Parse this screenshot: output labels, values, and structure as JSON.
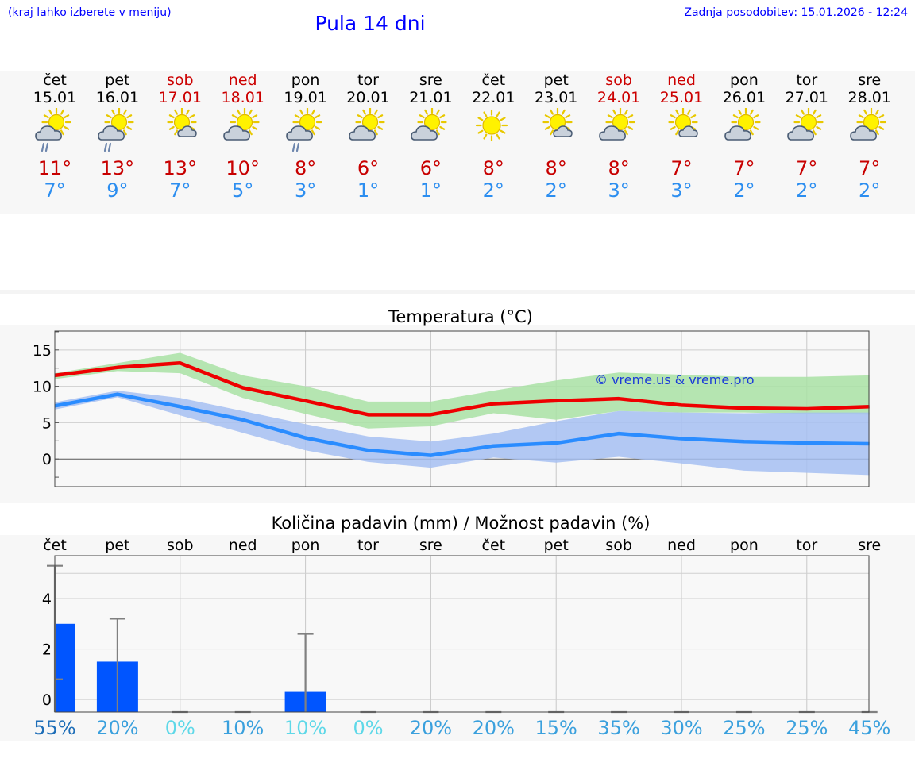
{
  "header": {
    "note": "(kraj lahko izberete v meniju)",
    "title": "Pula 14 dni",
    "update": "Zadnja posodobitev: 15.01.2026 - 12:24"
  },
  "colors": {
    "title_blue": "#0000ff",
    "max_temp": "#c80000",
    "min_temp": "#2c8ef0",
    "weekend": "#cc0000",
    "max_line": "#ee0000",
    "min_line": "#2a8cff",
    "max_band": "#a9e2a4",
    "min_band": "#a6c0f2",
    "bar": "#0055ff"
  },
  "days": [
    {
      "name": "čet",
      "date": "15.01",
      "max": "11°",
      "min": "7°",
      "weekend": false,
      "icon": "sun-cloud-rain-icon"
    },
    {
      "name": "pet",
      "date": "16.01",
      "max": "13°",
      "min": "9°",
      "weekend": false,
      "icon": "sun-cloud-rain-icon"
    },
    {
      "name": "sob",
      "date": "17.01",
      "max": "13°",
      "min": "7°",
      "weekend": true,
      "icon": "sun-small-cloud-icon"
    },
    {
      "name": "ned",
      "date": "18.01",
      "max": "10°",
      "min": "5°",
      "weekend": true,
      "icon": "sun-cloud-icon"
    },
    {
      "name": "pon",
      "date": "19.01",
      "max": "8°",
      "min": "3°",
      "weekend": false,
      "icon": "sun-cloud-rain-icon"
    },
    {
      "name": "tor",
      "date": "20.01",
      "max": "6°",
      "min": "1°",
      "weekend": false,
      "icon": "sun-cloud-icon"
    },
    {
      "name": "sre",
      "date": "21.01",
      "max": "6°",
      "min": "1°",
      "weekend": false,
      "icon": "sun-cloud-icon"
    },
    {
      "name": "čet",
      "date": "22.01",
      "max": "8°",
      "min": "2°",
      "weekend": false,
      "icon": "sun-icon"
    },
    {
      "name": "pet",
      "date": "23.01",
      "max": "8°",
      "min": "2°",
      "weekend": false,
      "icon": "sun-small-cloud-icon"
    },
    {
      "name": "sob",
      "date": "24.01",
      "max": "8°",
      "min": "3°",
      "weekend": true,
      "icon": "sun-cloud-icon"
    },
    {
      "name": "ned",
      "date": "25.01",
      "max": "7°",
      "min": "3°",
      "weekend": true,
      "icon": "sun-small-cloud-icon"
    },
    {
      "name": "pon",
      "date": "26.01",
      "max": "7°",
      "min": "2°",
      "weekend": false,
      "icon": "sun-cloud-icon"
    },
    {
      "name": "tor",
      "date": "27.01",
      "max": "7°",
      "min": "2°",
      "weekend": false,
      "icon": "sun-cloud-icon"
    },
    {
      "name": "sre",
      "date": "28.01",
      "max": "7°",
      "min": "2°",
      "weekend": false,
      "icon": "sun-cloud-icon"
    }
  ],
  "chart_data": [
    {
      "type": "line",
      "title": "Temperatura (°C)",
      "x": [
        0,
        1,
        2,
        3,
        4,
        5,
        6,
        7,
        8,
        9,
        10,
        11,
        12,
        13
      ],
      "ylim": [
        -3.8,
        17.6
      ],
      "yticks": [
        0,
        5,
        10,
        15
      ],
      "watermark": "© vreme.us & vreme.pro",
      "series": [
        {
          "name": "max",
          "values": [
            11.5,
            12.6,
            13.2,
            9.8,
            8.0,
            6.1,
            6.1,
            7.6,
            8.0,
            8.3,
            7.4,
            7.0,
            6.9,
            7.2
          ]
        },
        {
          "name": "max_low",
          "values": [
            11.0,
            12.1,
            11.8,
            8.4,
            6.2,
            4.2,
            4.5,
            6.3,
            5.4,
            6.6,
            6.4,
            6.4,
            6.2,
            6.1
          ]
        },
        {
          "name": "max_high",
          "values": [
            11.8,
            13.2,
            14.6,
            11.5,
            10.0,
            7.9,
            7.9,
            9.4,
            10.8,
            11.9,
            11.6,
            11.3,
            11.3,
            11.5
          ]
        },
        {
          "name": "min",
          "values": [
            7.3,
            8.9,
            7.2,
            5.4,
            2.9,
            1.2,
            0.5,
            1.8,
            2.2,
            3.5,
            2.8,
            2.4,
            2.2,
            2.1
          ]
        },
        {
          "name": "min_low",
          "values": [
            6.8,
            8.5,
            6.0,
            3.6,
            1.2,
            -0.4,
            -1.2,
            0.2,
            -0.5,
            0.3,
            -0.6,
            -1.6,
            -1.9,
            -2.2
          ]
        },
        {
          "name": "min_high",
          "values": [
            7.8,
            9.4,
            8.4,
            6.6,
            4.8,
            3.1,
            2.4,
            3.5,
            5.2,
            6.6,
            6.4,
            6.3,
            6.4,
            6.4
          ]
        }
      ]
    },
    {
      "type": "bar",
      "title": "Količina padavin (mm) / Možnost padavin (%)",
      "categories": [
        "čet",
        "pet",
        "sob",
        "ned",
        "pon",
        "tor",
        "sre",
        "čet",
        "pet",
        "sob",
        "ned",
        "pon",
        "tor",
        "sre"
      ],
      "ylim": [
        -0.5,
        5.7
      ],
      "yticks": [
        0,
        2,
        4
      ],
      "values": [
        3.0,
        1.5,
        0,
        0,
        0.3,
        0,
        0,
        0,
        0,
        0,
        0,
        0,
        0,
        0
      ],
      "error_low": [
        0.8,
        0,
        0,
        0,
        0,
        0,
        0,
        0,
        0,
        0,
        0,
        0,
        0,
        0
      ],
      "error_high": [
        5.3,
        3.2,
        0,
        0,
        2.6,
        0,
        0,
        0,
        0,
        0,
        0,
        0,
        0,
        0
      ],
      "probability": [
        "55%",
        "20%",
        "0%",
        "10%",
        "10%",
        "0%",
        "20%",
        "20%",
        "15%",
        "35%",
        "30%",
        "25%",
        "25%",
        "45%"
      ],
      "probability_colors": [
        "#1e6eb8",
        "#3aa0dd",
        "#5ed8e8",
        "#3aa0dd",
        "#5ed8e8",
        "#5ed8e8",
        "#3aa0dd",
        "#3aa0dd",
        "#3aa0dd",
        "#3aa0dd",
        "#3aa0dd",
        "#3aa0dd",
        "#3aa0dd",
        "#3aa0dd"
      ]
    }
  ]
}
